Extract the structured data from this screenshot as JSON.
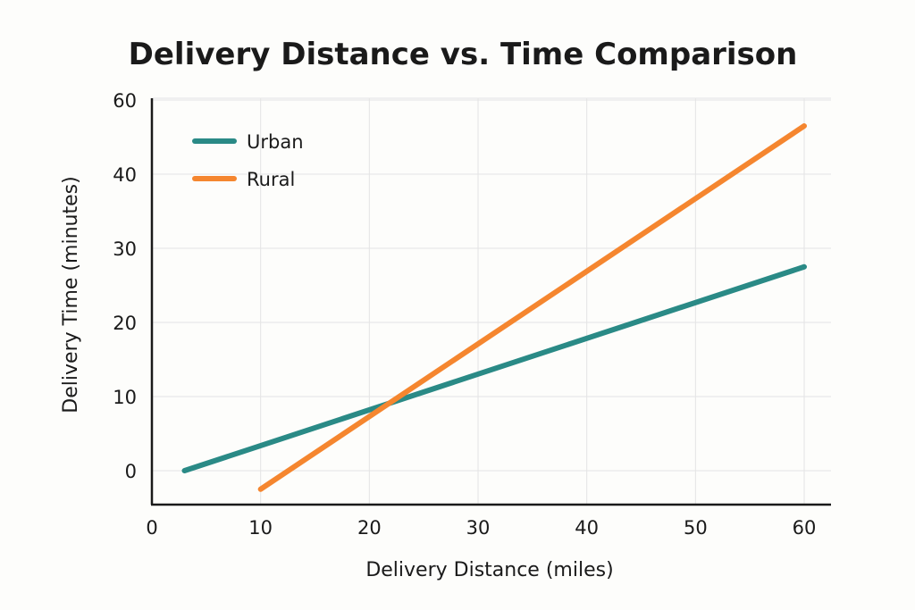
{
  "chart_data": {
    "type": "line",
    "title": "Delivery Distance vs. Time Comparison",
    "xlabel": "Delivery Distance (miles)",
    "ylabel": "Delivery Time (minutes)",
    "xlim": [
      0,
      60
    ],
    "ylim": [
      -5,
      60
    ],
    "x_ticks": [
      0,
      10,
      20,
      30,
      40,
      50,
      60
    ],
    "y_ticks": [
      0,
      10,
      20,
      30,
      40,
      60
    ],
    "grid": true,
    "legend_position": "top-left",
    "series": [
      {
        "name": "Urban",
        "color": "#2a8a86",
        "x": [
          3,
          60
        ],
        "y": [
          0,
          27.5
        ]
      },
      {
        "name": "Rural",
        "color": "#f5862f",
        "x": [
          10,
          60
        ],
        "y": [
          -2.5,
          46.5
        ]
      }
    ]
  }
}
